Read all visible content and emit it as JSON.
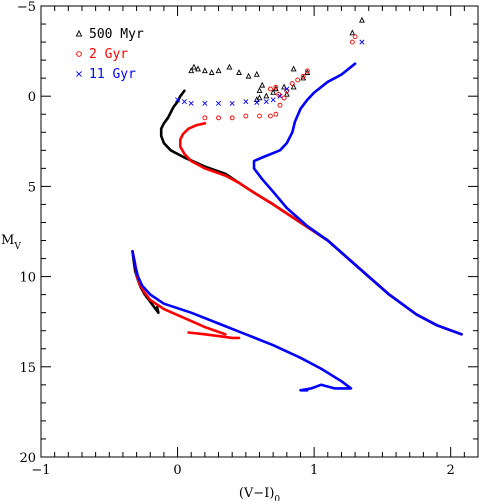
{
  "chart_data": {
    "type": "scatter",
    "title": "",
    "xlabel": "(V−I)",
    "xlabel_sub": "0",
    "ylabel": "M",
    "ylabel_sub": "V",
    "xlim": [
      -1,
      2.2
    ],
    "ylim": [
      20,
      -5
    ],
    "y_inverted": true,
    "x_ticks": [
      -1,
      0,
      1,
      2
    ],
    "x_tick_labels": [
      "−1",
      "0",
      "1",
      "2"
    ],
    "y_ticks": [
      -5,
      0,
      5,
      10,
      15,
      20
    ],
    "y_tick_labels": [
      "−5",
      "0",
      "5",
      "10",
      "15",
      "20"
    ],
    "x_minor_step": 0.1,
    "y_minor_step": 1,
    "grid": false,
    "legend_position": "top-left",
    "series": [
      {
        "name": "500 Myr",
        "color": "#000000",
        "marker": "triangle",
        "main_sequence": [
          [
            2.08,
            13.2
          ],
          [
            1.9,
            12.7
          ],
          [
            1.75,
            12.1
          ],
          [
            1.55,
            11.0
          ],
          [
            1.4,
            10.0
          ],
          [
            1.25,
            9.0
          ],
          [
            1.1,
            8.0
          ],
          [
            0.9,
            7.0
          ],
          [
            0.7,
            6.0
          ],
          [
            0.55,
            5.3
          ],
          [
            0.45,
            4.8
          ],
          [
            0.35,
            4.3
          ],
          [
            0.2,
            3.9
          ],
          [
            0.05,
            3.4
          ],
          [
            -0.05,
            3.0
          ],
          [
            -0.1,
            2.6
          ],
          [
            -0.12,
            2.2
          ],
          [
            -0.12,
            1.8
          ],
          [
            -0.1,
            1.5
          ],
          [
            -0.07,
            1.2
          ],
          [
            -0.05,
            0.9
          ],
          [
            -0.03,
            0.6
          ],
          [
            0.0,
            0.3
          ],
          [
            0.02,
            0.0
          ],
          [
            0.05,
            -0.3
          ]
        ],
        "giant_points": [
          [
            0.1,
            -1.4
          ],
          [
            0.12,
            -1.6
          ],
          [
            0.15,
            -1.5
          ],
          [
            0.2,
            -1.4
          ],
          [
            0.25,
            -1.3
          ],
          [
            0.3,
            -1.4
          ],
          [
            0.38,
            -1.6
          ],
          [
            0.45,
            -1.3
          ],
          [
            0.52,
            -1.1
          ],
          [
            0.58,
            -1.2
          ],
          [
            0.62,
            -0.6
          ],
          [
            0.6,
            -0.3
          ],
          [
            0.7,
            -0.2
          ],
          [
            0.8,
            -0.1
          ],
          [
            0.85,
            -0.5
          ],
          [
            0.78,
            -0.5
          ],
          [
            0.72,
            -0.4
          ],
          [
            0.65,
            0.0
          ],
          [
            0.6,
            0.1
          ],
          [
            0.58,
            0.2
          ],
          [
            0.92,
            -1.0
          ],
          [
            0.95,
            -1.3
          ],
          [
            0.85,
            -1.5
          ],
          [
            1.28,
            -3.5
          ],
          [
            1.35,
            -4.2
          ]
        ],
        "lower_ms": [
          [
            -0.33,
            8.6
          ],
          [
            -0.32,
            9.2
          ],
          [
            -0.31,
            9.7
          ],
          [
            -0.29,
            10.2
          ],
          [
            -0.27,
            10.6
          ],
          [
            -0.24,
            11.0
          ],
          [
            -0.2,
            11.4
          ],
          [
            -0.16,
            11.8
          ],
          [
            -0.14,
            12.0
          ],
          [
            -0.15,
            11.7
          ]
        ]
      },
      {
        "name": "2 Gyr",
        "color": "#ff0000",
        "marker": "circle",
        "main_sequence": [
          [
            2.08,
            13.2
          ],
          [
            1.9,
            12.7
          ],
          [
            1.75,
            12.1
          ],
          [
            1.55,
            11.0
          ],
          [
            1.4,
            10.0
          ],
          [
            1.25,
            9.0
          ],
          [
            1.1,
            8.0
          ],
          [
            0.9,
            7.0
          ],
          [
            0.7,
            6.0
          ],
          [
            0.55,
            5.3
          ],
          [
            0.45,
            4.8
          ],
          [
            0.35,
            4.4
          ],
          [
            0.2,
            4.0
          ],
          [
            0.1,
            3.6
          ],
          [
            0.05,
            3.2
          ],
          [
            0.02,
            2.8
          ],
          [
            0.02,
            2.4
          ],
          [
            0.04,
            2.1
          ],
          [
            0.08,
            1.8
          ],
          [
            0.14,
            1.6
          ],
          [
            0.2,
            1.5
          ]
        ],
        "giant_points": [
          [
            0.2,
            1.2
          ],
          [
            0.3,
            1.2
          ],
          [
            0.4,
            1.2
          ],
          [
            0.5,
            1.1
          ],
          [
            0.6,
            1.1
          ],
          [
            0.68,
            1.1
          ],
          [
            0.72,
            1.0
          ],
          [
            0.75,
            0.5
          ],
          [
            0.78,
            0.1
          ],
          [
            0.8,
            -0.3
          ],
          [
            0.84,
            -0.7
          ],
          [
            0.88,
            -0.9
          ],
          [
            0.92,
            -1.1
          ],
          [
            0.95,
            -1.4
          ],
          [
            0.72,
            -0.5
          ],
          [
            0.68,
            -0.4
          ],
          [
            0.74,
            -0.1
          ],
          [
            1.3,
            -3.3
          ],
          [
            1.28,
            -3.0
          ]
        ],
        "lower_ms": [
          [
            -0.33,
            8.6
          ],
          [
            -0.31,
            9.3
          ],
          [
            -0.3,
            9.9
          ],
          [
            -0.28,
            10.4
          ],
          [
            -0.25,
            10.8
          ],
          [
            -0.2,
            11.3
          ],
          [
            -0.1,
            11.8
          ],
          [
            0.05,
            12.3
          ],
          [
            0.2,
            12.8
          ],
          [
            0.35,
            13.2
          ]
        ],
        "extra_branch": [
          [
            0.08,
            13.1
          ],
          [
            0.2,
            13.2
          ],
          [
            0.3,
            13.3
          ],
          [
            0.4,
            13.4
          ],
          [
            0.45,
            13.4
          ]
        ]
      },
      {
        "name": "11 Gyr",
        "color": "#0000ff",
        "marker": "cross",
        "main_sequence": [
          [
            2.08,
            13.2
          ],
          [
            1.9,
            12.7
          ],
          [
            1.75,
            12.1
          ],
          [
            1.55,
            11.0
          ],
          [
            1.4,
            10.0
          ],
          [
            1.25,
            9.0
          ],
          [
            1.1,
            8.0
          ],
          [
            0.95,
            7.2
          ],
          [
            0.8,
            6.2
          ],
          [
            0.7,
            5.3
          ],
          [
            0.62,
            4.6
          ],
          [
            0.56,
            4.0
          ],
          [
            0.56,
            3.6
          ],
          [
            0.62,
            3.4
          ],
          [
            0.75,
            3.0
          ],
          [
            0.8,
            2.6
          ],
          [
            0.84,
            2.0
          ],
          [
            0.86,
            1.4
          ],
          [
            0.9,
            0.7
          ],
          [
            0.95,
            0.2
          ],
          [
            1.0,
            -0.2
          ],
          [
            1.05,
            -0.5
          ],
          [
            1.1,
            -0.8
          ],
          [
            1.2,
            -1.2
          ],
          [
            1.3,
            -1.8
          ]
        ],
        "giant_points": [
          [
            0.0,
            0.2
          ],
          [
            0.05,
            0.3
          ],
          [
            0.1,
            0.4
          ],
          [
            0.2,
            0.4
          ],
          [
            0.3,
            0.4
          ],
          [
            0.4,
            0.4
          ],
          [
            0.5,
            0.3
          ],
          [
            0.58,
            0.35
          ],
          [
            0.65,
            0.3
          ],
          [
            0.7,
            0.2
          ],
          [
            0.75,
            0.0
          ],
          [
            0.8,
            -0.4
          ],
          [
            1.35,
            -3.0
          ]
        ],
        "lower_ms": [
          [
            -0.33,
            8.6
          ],
          [
            -0.31,
            9.4
          ],
          [
            -0.29,
            10.0
          ],
          [
            -0.26,
            10.5
          ],
          [
            -0.2,
            11.0
          ],
          [
            -0.1,
            11.5
          ],
          [
            0.1,
            12.0
          ],
          [
            0.3,
            12.6
          ],
          [
            0.5,
            13.2
          ],
          [
            0.7,
            13.8
          ],
          [
            0.9,
            14.5
          ],
          [
            1.05,
            15.1
          ],
          [
            1.2,
            15.8
          ],
          [
            1.27,
            16.2
          ],
          [
            1.15,
            16.2
          ],
          [
            1.05,
            16.0
          ],
          [
            0.98,
            16.2
          ],
          [
            0.9,
            16.3
          ],
          [
            0.95,
            16.3
          ]
        ]
      }
    ]
  }
}
